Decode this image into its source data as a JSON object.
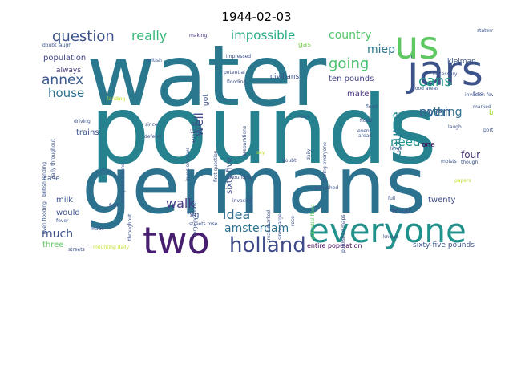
{
  "title": "1944-02-03",
  "words": [
    {
      "text": "pounds",
      "color": "#26828e"
    },
    {
      "text": "water",
      "color": "#2a788e"
    },
    {
      "text": "germans",
      "color": "#2c718e"
    },
    {
      "text": "everyone",
      "color": "#21918c"
    },
    {
      "text": "jars",
      "color": "#3b528b"
    },
    {
      "text": "two",
      "color": "#481f70"
    },
    {
      "text": "us",
      "color": "#5ec962"
    },
    {
      "text": "holland",
      "color": "#3e4a89"
    },
    {
      "text": "question",
      "color": "#3b528b"
    },
    {
      "text": "really",
      "color": "#35b779"
    },
    {
      "text": "impossible",
      "color": "#25ab82"
    },
    {
      "text": "country",
      "color": "#52c569"
    },
    {
      "text": "going",
      "color": "#4ac16d"
    },
    {
      "text": "miep",
      "color": "#2a788e"
    },
    {
      "text": "cans",
      "color": "#1f9e89"
    },
    {
      "text": "annex",
      "color": "#38598c"
    },
    {
      "text": "house",
      "color": "#2c728e"
    },
    {
      "text": "well",
      "color": "#3e4c8a"
    },
    {
      "text": "course",
      "color": "#26828e"
    },
    {
      "text": "nothing",
      "color": "#2d708e"
    },
    {
      "text": "even",
      "color": "#355f8d"
    },
    {
      "text": "need",
      "color": "#21918c"
    },
    {
      "text": "walk",
      "color": "#443983"
    },
    {
      "text": "idea",
      "color": "#2e6e8e"
    },
    {
      "text": "amsterdam",
      "color": "#2c728e"
    },
    {
      "text": "much",
      "color": "#3b528b"
    },
    {
      "text": "four",
      "color": "#46337e"
    },
    {
      "text": "population",
      "color": "#404688"
    },
    {
      "text": "always",
      "color": "#453781"
    },
    {
      "text": "make",
      "color": "#46307e"
    },
    {
      "text": "civilians",
      "color": "#3b528b"
    },
    {
      "text": "ten pounds",
      "color": "#414487"
    },
    {
      "text": "trains",
      "color": "#3b528b"
    },
    {
      "text": "twenty",
      "color": "#3e4989"
    },
    {
      "text": "wood",
      "color": "#3b528b"
    },
    {
      "text": "milk",
      "color": "#3b528b"
    },
    {
      "text": "would",
      "color": "#3b528b"
    },
    {
      "text": "case",
      "color": "#3b528b"
    },
    {
      "text": "big",
      "color": "#3b528b"
    },
    {
      "text": "three",
      "color": "#5ec962"
    },
    {
      "text": "sixty-five",
      "color": "#3b528b"
    },
    {
      "text": "sixty-five pounds",
      "color": "#3b528b"
    },
    {
      "text": "entire population",
      "color": "#440154"
    },
    {
      "text": "entire",
      "color": "#3b528b"
    },
    {
      "text": "got",
      "color": "#3b528b"
    },
    {
      "text": "one",
      "color": "#440154"
    },
    {
      "text": "kleiman",
      "color": "#3b528b"
    },
    {
      "text": "beans",
      "color": "#a0da39"
    },
    {
      "text": "gas",
      "color": "#7ad151"
    },
    {
      "text": "making",
      "color": "#46327e"
    },
    {
      "text": "british",
      "color": "#3b528b"
    },
    {
      "text": "impressed",
      "color": "#3b528b"
    },
    {
      "text": "potential",
      "color": "#3b528b"
    },
    {
      "text": "flooding",
      "color": "#3b528b"
    },
    {
      "text": "doubt laugh",
      "color": "#3b528b"
    },
    {
      "text": "statements",
      "color": "#3b528b"
    },
    {
      "text": "landing",
      "color": "#bddf26"
    },
    {
      "text": "invasion fever",
      "color": "#3b528b"
    },
    {
      "text": "laugh",
      "color": "#3b528b"
    },
    {
      "text": "portions",
      "color": "#3b528b"
    },
    {
      "text": "event",
      "color": "#3b528b"
    },
    {
      "text": "areas",
      "color": "#3b528b"
    },
    {
      "text": "flood areas",
      "color": "#3b528b"
    },
    {
      "text": "flood",
      "color": "#3b528b"
    },
    {
      "text": "large",
      "color": "#3b528b"
    },
    {
      "text": "fuss",
      "color": "#3b528b"
    },
    {
      "text": "moists",
      "color": "#3b528b"
    },
    {
      "text": "papers",
      "color": "#bddf26"
    },
    {
      "text": "though",
      "color": "#3b528b"
    },
    {
      "text": "many preparations",
      "color": "#3b528b"
    },
    {
      "text": "full",
      "color": "#3b528b"
    },
    {
      "text": "published",
      "color": "#3b528b"
    },
    {
      "text": "driving",
      "color": "#3b528b"
    },
    {
      "text": "since",
      "color": "#3b528b"
    },
    {
      "text": "defend",
      "color": "#3b528b"
    },
    {
      "text": "doubt",
      "color": "#3b528b"
    },
    {
      "text": "mounting",
      "color": "#3b528b"
    },
    {
      "text": "invasion",
      "color": "#3b528b"
    },
    {
      "text": "first",
      "color": "#3b528b"
    },
    {
      "text": "fever",
      "color": "#3b528b"
    },
    {
      "text": "even flooding",
      "color": "#3b528b"
    },
    {
      "text": "maps",
      "color": "#3b528b"
    },
    {
      "text": "streets",
      "color": "#3b528b"
    },
    {
      "text": "mounting daily",
      "color": "#bddf26"
    },
    {
      "text": "knows",
      "color": "#3b528b"
    },
    {
      "text": "necessary",
      "color": "#3b528b"
    },
    {
      "text": "driving everyone",
      "color": "#3b528b"
    },
    {
      "text": "published maps",
      "color": "#3b528b"
    },
    {
      "text": "daily throughout",
      "color": "#3b528b"
    },
    {
      "text": "british landing",
      "color": "#3b528b"
    },
    {
      "text": "everyone insane",
      "color": "#3b528b"
    },
    {
      "text": "invasion news",
      "color": "#3b528b"
    },
    {
      "text": "first question",
      "color": "#3b528b"
    },
    {
      "text": "preparations",
      "color": "#3b528b"
    },
    {
      "text": "areas marked",
      "color": "#3b528b"
    },
    {
      "text": "since large",
      "color": "#3b528b"
    },
    {
      "text": "potential flood",
      "color": "#5ec962"
    },
    {
      "text": "insane",
      "color": "#3b528b"
    },
    {
      "text": "news",
      "color": "#3b528b"
    },
    {
      "text": "throughout",
      "color": "#3b528b"
    },
    {
      "text": "daily",
      "color": "#3b528b"
    },
    {
      "text": "large portions",
      "color": "#3b528b"
    },
    {
      "text": "streets rose",
      "color": "#3b528b"
    },
    {
      "text": "rose",
      "color": "#3b528b"
    },
    {
      "text": "say",
      "color": "#bddf26"
    },
    {
      "text": "flood",
      "color": "#3b528b"
    },
    {
      "text": "marked",
      "color": "#3b528b"
    }
  ]
}
